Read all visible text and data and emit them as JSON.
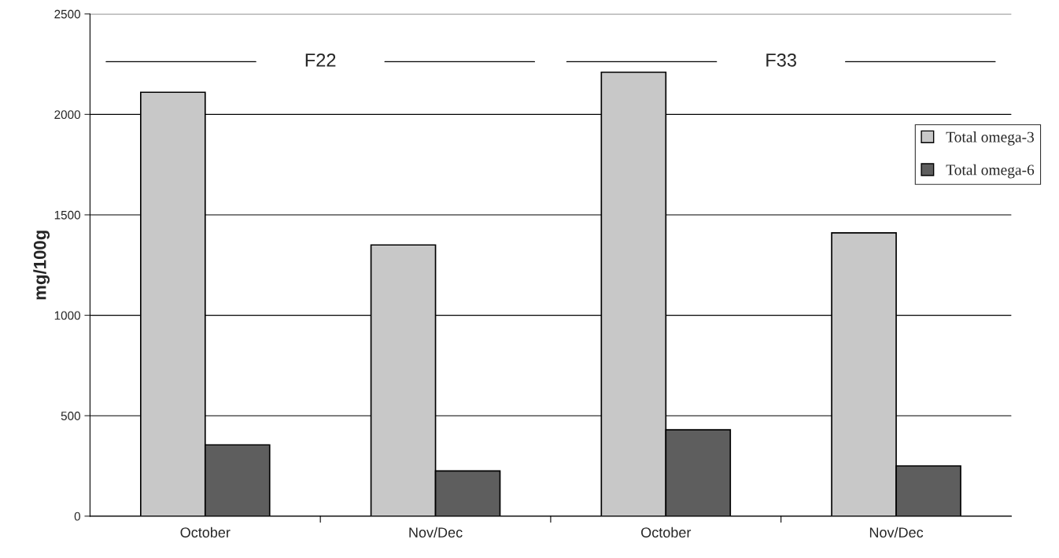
{
  "chart_data": {
    "type": "bar",
    "ylabel": "mg/100g",
    "categories": [
      "October",
      "Nov/Dec",
      "October",
      "Nov/Dec"
    ],
    "series": [
      {
        "name": "Total omega-3",
        "color": "#c8c8c8",
        "values": [
          2110,
          1350,
          2210,
          1410
        ]
      },
      {
        "name": "Total omega-6",
        "color": "#5e5e5e",
        "values": [
          355,
          225,
          430,
          250
        ]
      }
    ],
    "ylim": [
      0,
      2500
    ],
    "yticks": [
      0,
      500,
      1000,
      1500,
      2000,
      2500
    ],
    "grid": "y",
    "legend": "right",
    "annotations": [
      "F22",
      "F33"
    ]
  }
}
